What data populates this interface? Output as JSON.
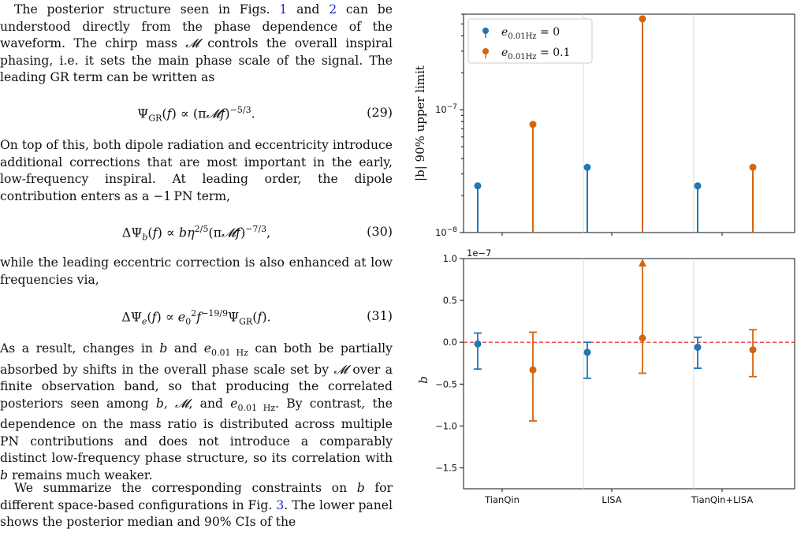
{
  "text": {
    "p1": "The posterior structure seen in Figs. {1} and {2} can be understood directly from the phase dependence of the waveform. The chirp mass 𝓜 controls the overall inspiral phasing, i.e. it sets the main phase scale of the signal. The leading GR term can be written as",
    "p1_refs": [
      "1",
      "2"
    ],
    "eq29": "Ψ_GR(f) ∝ (π𝓜f)^−5/3.",
    "eq29_num": "(29)",
    "p2": "On top of this, both dipole radiation and eccentricity introduce additional corrections that are most important in the early, low-frequency inspiral. At leading order, the dipole contribution enters as a −1 PN term,",
    "eq30": "ΔΨ_b(f) ∝ bη^2/5(π𝓜f)^−7/3,",
    "eq30_num": "(30)",
    "p3": "while the leading eccentric correction is also enhanced at low frequencies via,",
    "eq31": "ΔΨ_e(f) ∝ e_0^2 f^−19/9 Ψ_GR(f).",
    "eq31_num": "(31)",
    "p4": "As a result, changes in b and e_0.01 Hz can both be partially absorbed by shifts in the overall phase scale set by 𝓜 over a finite observation band, so that producing the correlated posteriors seen among b, 𝓜, and e_0.01 Hz. By contrast, the dependence on the mass ratio is distributed across multiple PN contributions and does not introduce a comparably distinct low-frequency phase structure, so its correlation with b remains much weaker.",
    "p5": "We summarize the corresponding constraints on b for different space-based configurations in Fig. {3}. The lower panel shows the posterior median and 90% CIs of the",
    "p5_ref": "3"
  },
  "figure": {
    "colors": {
      "e0": "#1f77b4",
      "e01": "#d4650d",
      "zero_line": "#e0181b",
      "separator": "#d9d9d9"
    },
    "chart_data": [
      {
        "type": "scatter",
        "panel": "top",
        "ylabel": "|b| 90% upper limit",
        "yscale": "log",
        "ylim": [
          1e-08,
          6e-07
        ],
        "ytick_labels": [
          "10^−8",
          "10^−7"
        ],
        "categories": [
          "TianQin",
          "LISA",
          "TianQin+LISA"
        ],
        "legend": [
          "e_0.01Hz = 0",
          "e_0.01Hz = 0.1"
        ],
        "legend_position": "top-left",
        "series": [
          {
            "name": "e_0.01Hz = 0",
            "values": [
              2.4e-08,
              3.4e-08,
              2.4e-08
            ]
          },
          {
            "name": "e_0.01Hz = 0.1",
            "values": [
              7.6e-08,
              5.5e-07,
              3.4e-08
            ]
          }
        ]
      },
      {
        "type": "scatter",
        "panel": "bottom",
        "ylabel": "b",
        "scale_label": "1e−7",
        "ylim": [
          -1.75,
          1.0
        ],
        "yticks": [
          1.0,
          0.5,
          0.0,
          -0.5,
          -1.0,
          -1.5
        ],
        "ytick_labels": [
          "1.0",
          "0.5",
          "0.0",
          "−0.5",
          "−1.0",
          "−1.5"
        ],
        "categories": [
          "TianQin",
          "LISA",
          "TianQin+LISA"
        ],
        "reference_line": 0.0,
        "series": [
          {
            "name": "e_0.01Hz = 0",
            "median": [
              -0.02,
              -0.12,
              -0.06
            ],
            "lower": [
              -0.32,
              -0.43,
              -0.31
            ],
            "upper": [
              0.11,
              0.0,
              0.06
            ]
          },
          {
            "name": "e_0.01Hz = 0.1",
            "median": [
              -0.33,
              0.05,
              -0.09
            ],
            "lower": [
              -0.94,
              -0.37,
              -0.41
            ],
            "upper": [
              0.12,
              0.97,
              0.15
            ],
            "upper_arrow": [
              false,
              true,
              false
            ]
          }
        ]
      }
    ]
  }
}
